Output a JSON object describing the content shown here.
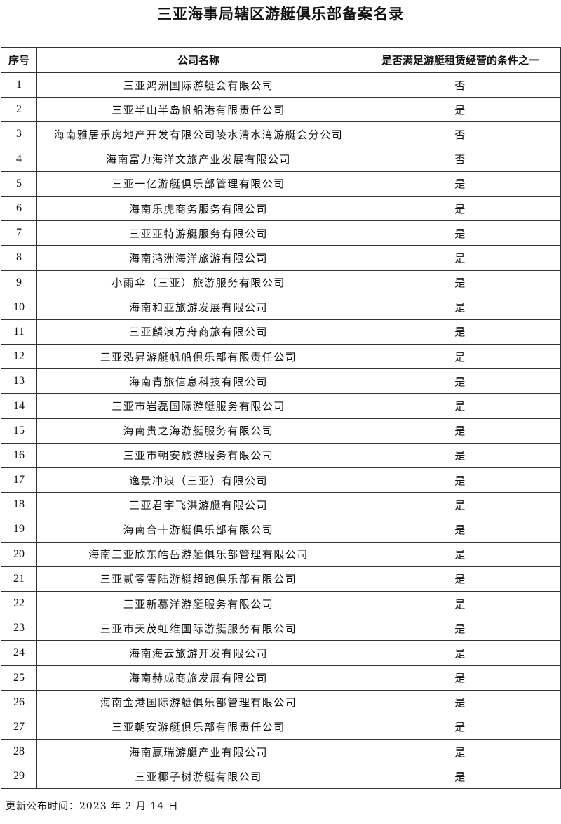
{
  "title": "三亚海事局辖区游艇俱乐部备案名录",
  "table": {
    "headers": [
      "序号",
      "公司名称",
      "是否满足游艇租赁经营的条件之一"
    ],
    "rows": [
      [
        "1",
        "三亚鸿洲国际游艇会有限公司",
        "否"
      ],
      [
        "2",
        "三亚半山半岛帆船港有限责任公司",
        "是"
      ],
      [
        "3",
        "海南雅居乐房地产开发有限公司陵水清水湾游艇会分公司",
        "否"
      ],
      [
        "4",
        "海南富力海洋文旅产业发展有限公司",
        "否"
      ],
      [
        "5",
        "三亚一亿游艇俱乐部管理有限公司",
        "是"
      ],
      [
        "6",
        "海南乐虎商务服务有限公司",
        "是"
      ],
      [
        "7",
        "三亚亚特游艇服务有限公司",
        "是"
      ],
      [
        "8",
        "海南鸿洲海洋旅游有限公司",
        "是"
      ],
      [
        "9",
        "小雨伞（三亚）旅游服务有限公司",
        "是"
      ],
      [
        "10",
        "海南和亚旅游发展有限公司",
        "是"
      ],
      [
        "11",
        "三亚麟浪方舟商旅有限公司",
        "是"
      ],
      [
        "12",
        "三亚泓昇游艇帆船俱乐部有限责任公司",
        "是"
      ],
      [
        "13",
        "海南青旅信息科技有限公司",
        "是"
      ],
      [
        "14",
        "三亚市岩磊国际游艇服务有限公司",
        "是"
      ],
      [
        "15",
        "海南贵之海游艇服务有限公司",
        "是"
      ],
      [
        "16",
        "三亚市朝安旅游服务有限公司",
        "是"
      ],
      [
        "17",
        "逸景冲浪（三亚）有限公司",
        "是"
      ],
      [
        "18",
        "三亚君宇飞洪游艇有限公司",
        "是"
      ],
      [
        "19",
        "海南合十游艇俱乐部有限公司",
        "是"
      ],
      [
        "20",
        "海南三亚欣东皓岳游艇俱乐部管理有限公司",
        "是"
      ],
      [
        "21",
        "三亚贰零零陆游艇超跑俱乐部有限公司",
        "是"
      ],
      [
        "22",
        "三亚新慕洋游艇服务有限公司",
        "是"
      ],
      [
        "23",
        "三亚市天茂虹维国际游艇服务有限公司",
        "是"
      ],
      [
        "24",
        "海南海云旅游开发有限公司",
        "是"
      ],
      [
        "25",
        "海南赫成商旅发展有限公司",
        "是"
      ],
      [
        "26",
        "海南金港国际游艇俱乐部管理有限公司",
        "是"
      ],
      [
        "27",
        "三亚朝安游艇俱乐部有限责任公司",
        "是"
      ],
      [
        "28",
        "海南赢瑞游艇产业有限公司",
        "是"
      ],
      [
        "29",
        "三亚椰子树游艇有限公司",
        "是"
      ]
    ]
  },
  "footer": "更新公布时间：2023 年 2 月 14 日"
}
